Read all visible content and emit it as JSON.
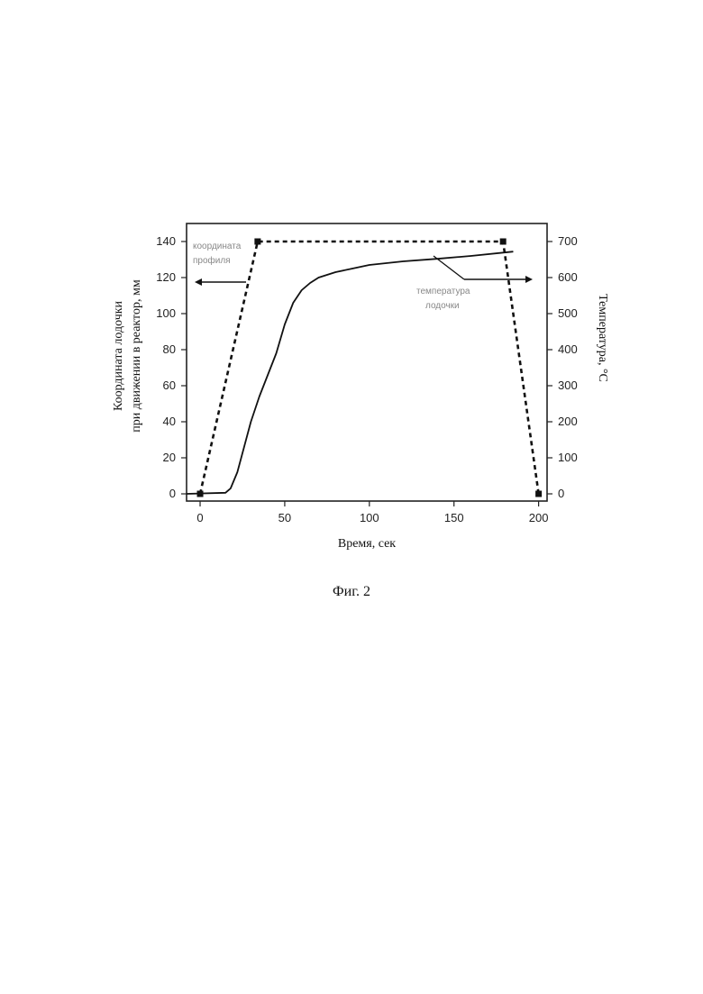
{
  "figure_caption": "Фиг. 2",
  "chart_data": {
    "type": "line",
    "xlabel": "Время, сек",
    "ylabel_left": [
      "Координата лодочки",
      "при движении в реактор, мм"
    ],
    "ylabel_right": "Температура, °C",
    "xlim": [
      -8,
      205
    ],
    "ylim_left": [
      -4,
      150
    ],
    "ylim_right": [
      -20,
      750
    ],
    "x_ticks": [
      0,
      50,
      100,
      150,
      200
    ],
    "y_left_ticks": [
      0,
      20,
      40,
      60,
      80,
      100,
      120,
      140
    ],
    "y_right_ticks": [
      0,
      100,
      200,
      300,
      400,
      500,
      600,
      700
    ],
    "grid": false,
    "series": [
      {
        "name": "координата профиля",
        "axis": "left",
        "style": "dashed",
        "markers": "square",
        "x": [
          0,
          34,
          179,
          200
        ],
        "y": [
          0,
          140,
          140,
          0
        ]
      },
      {
        "name": "температура лодочки",
        "axis": "right",
        "style": "solid",
        "x": [
          -8,
          15,
          18,
          22,
          26,
          30,
          35,
          40,
          45,
          50,
          55,
          60,
          65,
          70,
          80,
          90,
          100,
          120,
          140,
          160,
          185
        ],
        "y": [
          0,
          3,
          15,
          60,
          130,
          200,
          270,
          330,
          390,
          470,
          530,
          565,
          585,
          600,
          615,
          625,
          635,
          645,
          652,
          660,
          672
        ]
      }
    ],
    "annotations": [
      {
        "text": [
          "координата",
          "профиля"
        ],
        "arrow": "left"
      },
      {
        "text": [
          "температура",
          "лодочки"
        ],
        "arrow": "right"
      }
    ]
  }
}
